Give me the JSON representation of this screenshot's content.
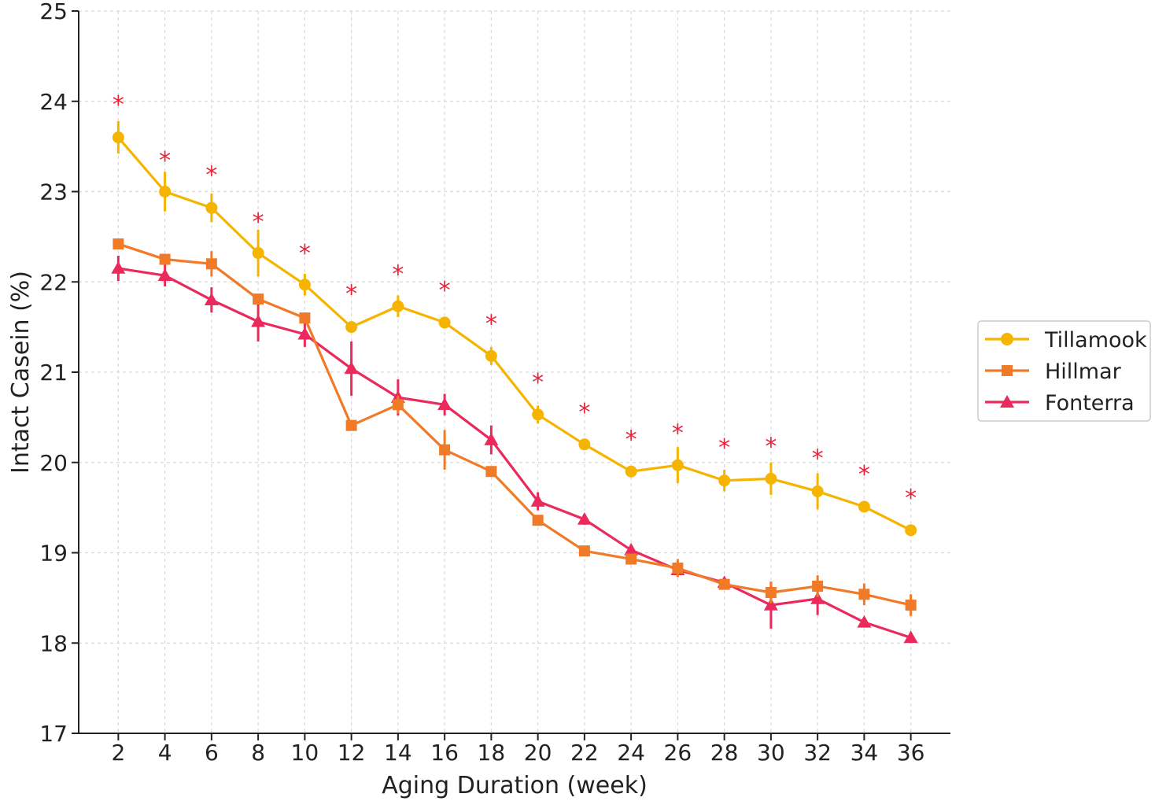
{
  "chart_data": {
    "type": "line",
    "title": "",
    "xlabel": "Aging Duration (week)",
    "ylabel": "Intact Casein (%)",
    "x": [
      2,
      4,
      6,
      8,
      10,
      12,
      14,
      16,
      18,
      20,
      22,
      24,
      26,
      28,
      30,
      32,
      34,
      36
    ],
    "xlim": [
      0.3,
      37.7
    ],
    "ylim": [
      17,
      25
    ],
    "yticks": [
      17,
      18,
      19,
      20,
      21,
      22,
      23,
      24,
      25
    ],
    "grid": true,
    "legend_position": "right-center",
    "series": [
      {
        "name": "Tillamook",
        "color": "#f5b400",
        "marker": "circle",
        "values": [
          23.6,
          23.0,
          22.82,
          22.32,
          21.97,
          21.5,
          21.73,
          21.55,
          21.18,
          20.53,
          20.2,
          19.9,
          19.97,
          19.8,
          19.82,
          19.68,
          19.51,
          19.25
        ],
        "errors": [
          0.18,
          0.22,
          0.16,
          0.26,
          0.12,
          0.04,
          0.12,
          0.04,
          0.1,
          0.1,
          0.04,
          0.04,
          0.2,
          0.12,
          0.18,
          0.2,
          0.04,
          0.04
        ]
      },
      {
        "name": "Hillmar",
        "color": "#f07a28",
        "marker": "square",
        "values": [
          22.42,
          22.25,
          22.2,
          21.81,
          21.6,
          20.41,
          20.64,
          20.14,
          19.9,
          19.36,
          19.02,
          18.93,
          18.83,
          18.65,
          18.56,
          18.63,
          18.54,
          18.42
        ],
        "errors": [
          0.05,
          0.04,
          0.14,
          0.04,
          0.06,
          0.04,
          0.1,
          0.22,
          0.04,
          0.04,
          0.04,
          0.06,
          0.1,
          0.04,
          0.12,
          0.12,
          0.12,
          0.12
        ]
      },
      {
        "name": "Fonterra",
        "color": "#ea2a5c",
        "marker": "triangle",
        "values": [
          22.15,
          22.07,
          21.8,
          21.56,
          21.42,
          21.04,
          20.72,
          20.64,
          20.25,
          19.57,
          19.37,
          19.03,
          18.81,
          18.67,
          18.42,
          18.49,
          18.23,
          18.06
        ],
        "errors": [
          0.14,
          0.12,
          0.14,
          0.22,
          0.14,
          0.3,
          0.2,
          0.12,
          0.16,
          0.1,
          0.06,
          0.06,
          0.06,
          0.04,
          0.26,
          0.18,
          0.04,
          0.04
        ]
      }
    ],
    "significance": {
      "symbol": "*",
      "color": "#e8243b",
      "values": [
        24.0,
        23.38,
        23.22,
        22.7,
        22.35,
        21.9,
        22.12,
        21.94,
        21.57,
        20.92,
        20.59,
        20.29,
        20.36,
        20.2,
        20.21,
        20.08,
        19.9,
        19.64
      ]
    }
  }
}
